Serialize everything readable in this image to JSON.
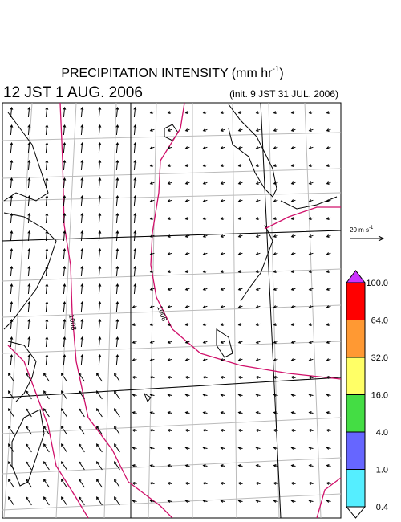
{
  "header": {
    "title": "PRECIPITATION INTENSITY (mm hr",
    "title_superscript": "-1",
    "title_close": ")",
    "valid_time": "12 JST 1 AUG. 2006",
    "init_time": "(init. 9 JST 31 JUL. 2006)"
  },
  "map": {
    "isobar_labels": [
      "1008",
      "1008"
    ]
  },
  "vector_legend": {
    "label": "20 m s",
    "superscript": "-1"
  },
  "colorbar": {
    "over_color": "#cc33ff",
    "under_color": "#ffffff",
    "levels": [
      {
        "label": "100.0",
        "color": "#ff0000"
      },
      {
        "label": "64.0",
        "color": "#ff9933"
      },
      {
        "label": "32.0",
        "color": "#ffff66"
      },
      {
        "label": "16.0",
        "color": "#44dd44"
      },
      {
        "label": "4.0",
        "color": "#6666ff"
      },
      {
        "label": "1.0",
        "color": "#55eeff"
      },
      {
        "label": "0.4",
        "color": null
      }
    ]
  }
}
